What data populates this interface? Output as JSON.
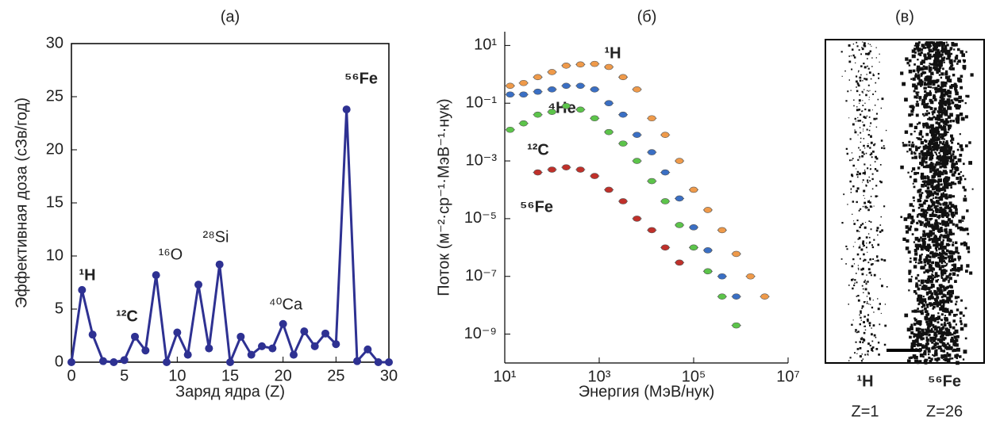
{
  "chart_data": [
    {
      "type": "line",
      "title": "(а)",
      "x_label": "Заряд ядра (Z)",
      "y_label": "Эффективная доза (сЗв/год)",
      "x": [
        0,
        1,
        2,
        3,
        4,
        5,
        6,
        7,
        8,
        9,
        10,
        11,
        12,
        13,
        14,
        15,
        16,
        17,
        18,
        19,
        20,
        21,
        22,
        23,
        24,
        25,
        26,
        27,
        28,
        29,
        30
      ],
      "values": [
        0,
        6.8,
        2.6,
        0.1,
        0,
        0.2,
        2.4,
        1.1,
        8.2,
        0,
        2.8,
        0.7,
        7.3,
        1.3,
        9.2,
        0,
        2.4,
        0.7,
        1.5,
        1.3,
        3.6,
        0.7,
        2.9,
        1.5,
        2.7,
        1.7,
        23.8,
        0.1,
        1.2,
        0,
        0
      ],
      "color": "#2e3192",
      "xlim": [
        0,
        30
      ],
      "xticks": [
        0,
        5,
        10,
        15,
        20,
        25,
        30
      ],
      "ylim": [
        0,
        30
      ],
      "yticks": [
        0,
        5,
        10,
        15,
        20,
        25,
        30
      ],
      "annotations": [
        "¹H",
        "¹²C",
        "¹⁶O",
        "²⁸Si",
        "⁴⁰Ca",
        "⁵⁶Fe"
      ]
    },
    {
      "type": "scatter",
      "title": "(б)",
      "x_label": "Энергия (МэВ/нук)",
      "y_label": "Поток (м⁻²·ср⁻¹·МэВ⁻¹·нук)",
      "xscale": "log",
      "yscale": "log",
      "xlim": [
        10,
        10000000
      ],
      "xticks": [
        {
          "value": 10,
          "label": "10¹"
        },
        {
          "value": 1000,
          "label": "10³"
        },
        {
          "value": 100000,
          "label": "10⁵"
        },
        {
          "value": 10000000,
          "label": "10⁷"
        }
      ],
      "ylim": [
        1e-10,
        30
      ],
      "yticks": [
        {
          "value": 10,
          "label": "10¹"
        },
        {
          "value": 0.1,
          "label": "10⁻¹"
        },
        {
          "value": 0.001,
          "label": "10⁻³"
        },
        {
          "value": 1e-05,
          "label": "10⁻⁵"
        },
        {
          "value": 1e-07,
          "label": "10⁻⁷"
        },
        {
          "value": 1e-09,
          "label": "10⁻⁹"
        }
      ],
      "series": [
        {
          "name": "¹H",
          "color": "#ef9a4a",
          "x": [
            13,
            25,
            50,
            100,
            200,
            400,
            800,
            1600,
            3200,
            6300,
            13000,
            25000,
            50000,
            100000,
            200000,
            400000,
            800000,
            1600000,
            3200000
          ],
          "values": [
            0.4,
            0.5,
            0.8,
            1.2,
            2,
            2.2,
            2.3,
            1.8,
            0.8,
            0.3,
            0.03,
            0.008,
            0.001,
            0.0001,
            2e-05,
            4e-06,
            6e-07,
            1e-07,
            2e-08
          ]
        },
        {
          "name": "⁴He",
          "color": "#3a6fc4",
          "x": [
            13,
            25,
            50,
            100,
            200,
            400,
            800,
            1600,
            3200,
            6300,
            13000,
            25000,
            50000,
            100000,
            200000,
            400000,
            800000
          ],
          "values": [
            0.2,
            0.2,
            0.25,
            0.3,
            0.4,
            0.4,
            0.3,
            0.1,
            0.04,
            0.008,
            0.002,
            0.0004,
            5e-05,
            5e-06,
            8e-07,
            1e-07,
            2e-08
          ]
        },
        {
          "name": "¹²C",
          "color": "#5cc44a",
          "x": [
            13,
            25,
            50,
            100,
            200,
            400,
            800,
            1600,
            3200,
            6300,
            13000,
            25000,
            50000,
            100000,
            200000,
            400000,
            800000
          ],
          "values": [
            0.012,
            0.02,
            0.04,
            0.05,
            0.08,
            0.06,
            0.03,
            0.01,
            0.004,
            0.001,
            0.0002,
            4e-05,
            6e-06,
            1e-06,
            1.5e-07,
            2e-08,
            2e-09
          ]
        },
        {
          "name": "⁵⁶Fe",
          "color": "#c0302a",
          "x": [
            50,
            100,
            200,
            400,
            800,
            1600,
            3200,
            6300,
            13000,
            25000,
            50000
          ],
          "values": [
            0.0004,
            0.0005,
            0.0006,
            0.0005,
            0.0003,
            0.0001,
            4e-05,
            1e-05,
            4e-06,
            1e-06,
            3e-07
          ]
        }
      ]
    }
  ],
  "image_panel": {
    "title": "(в)",
    "tracks": [
      {
        "particle": "¹H",
        "charge": "Z=1"
      },
      {
        "particle": "⁵⁶Fe",
        "charge": "Z=26"
      }
    ]
  }
}
